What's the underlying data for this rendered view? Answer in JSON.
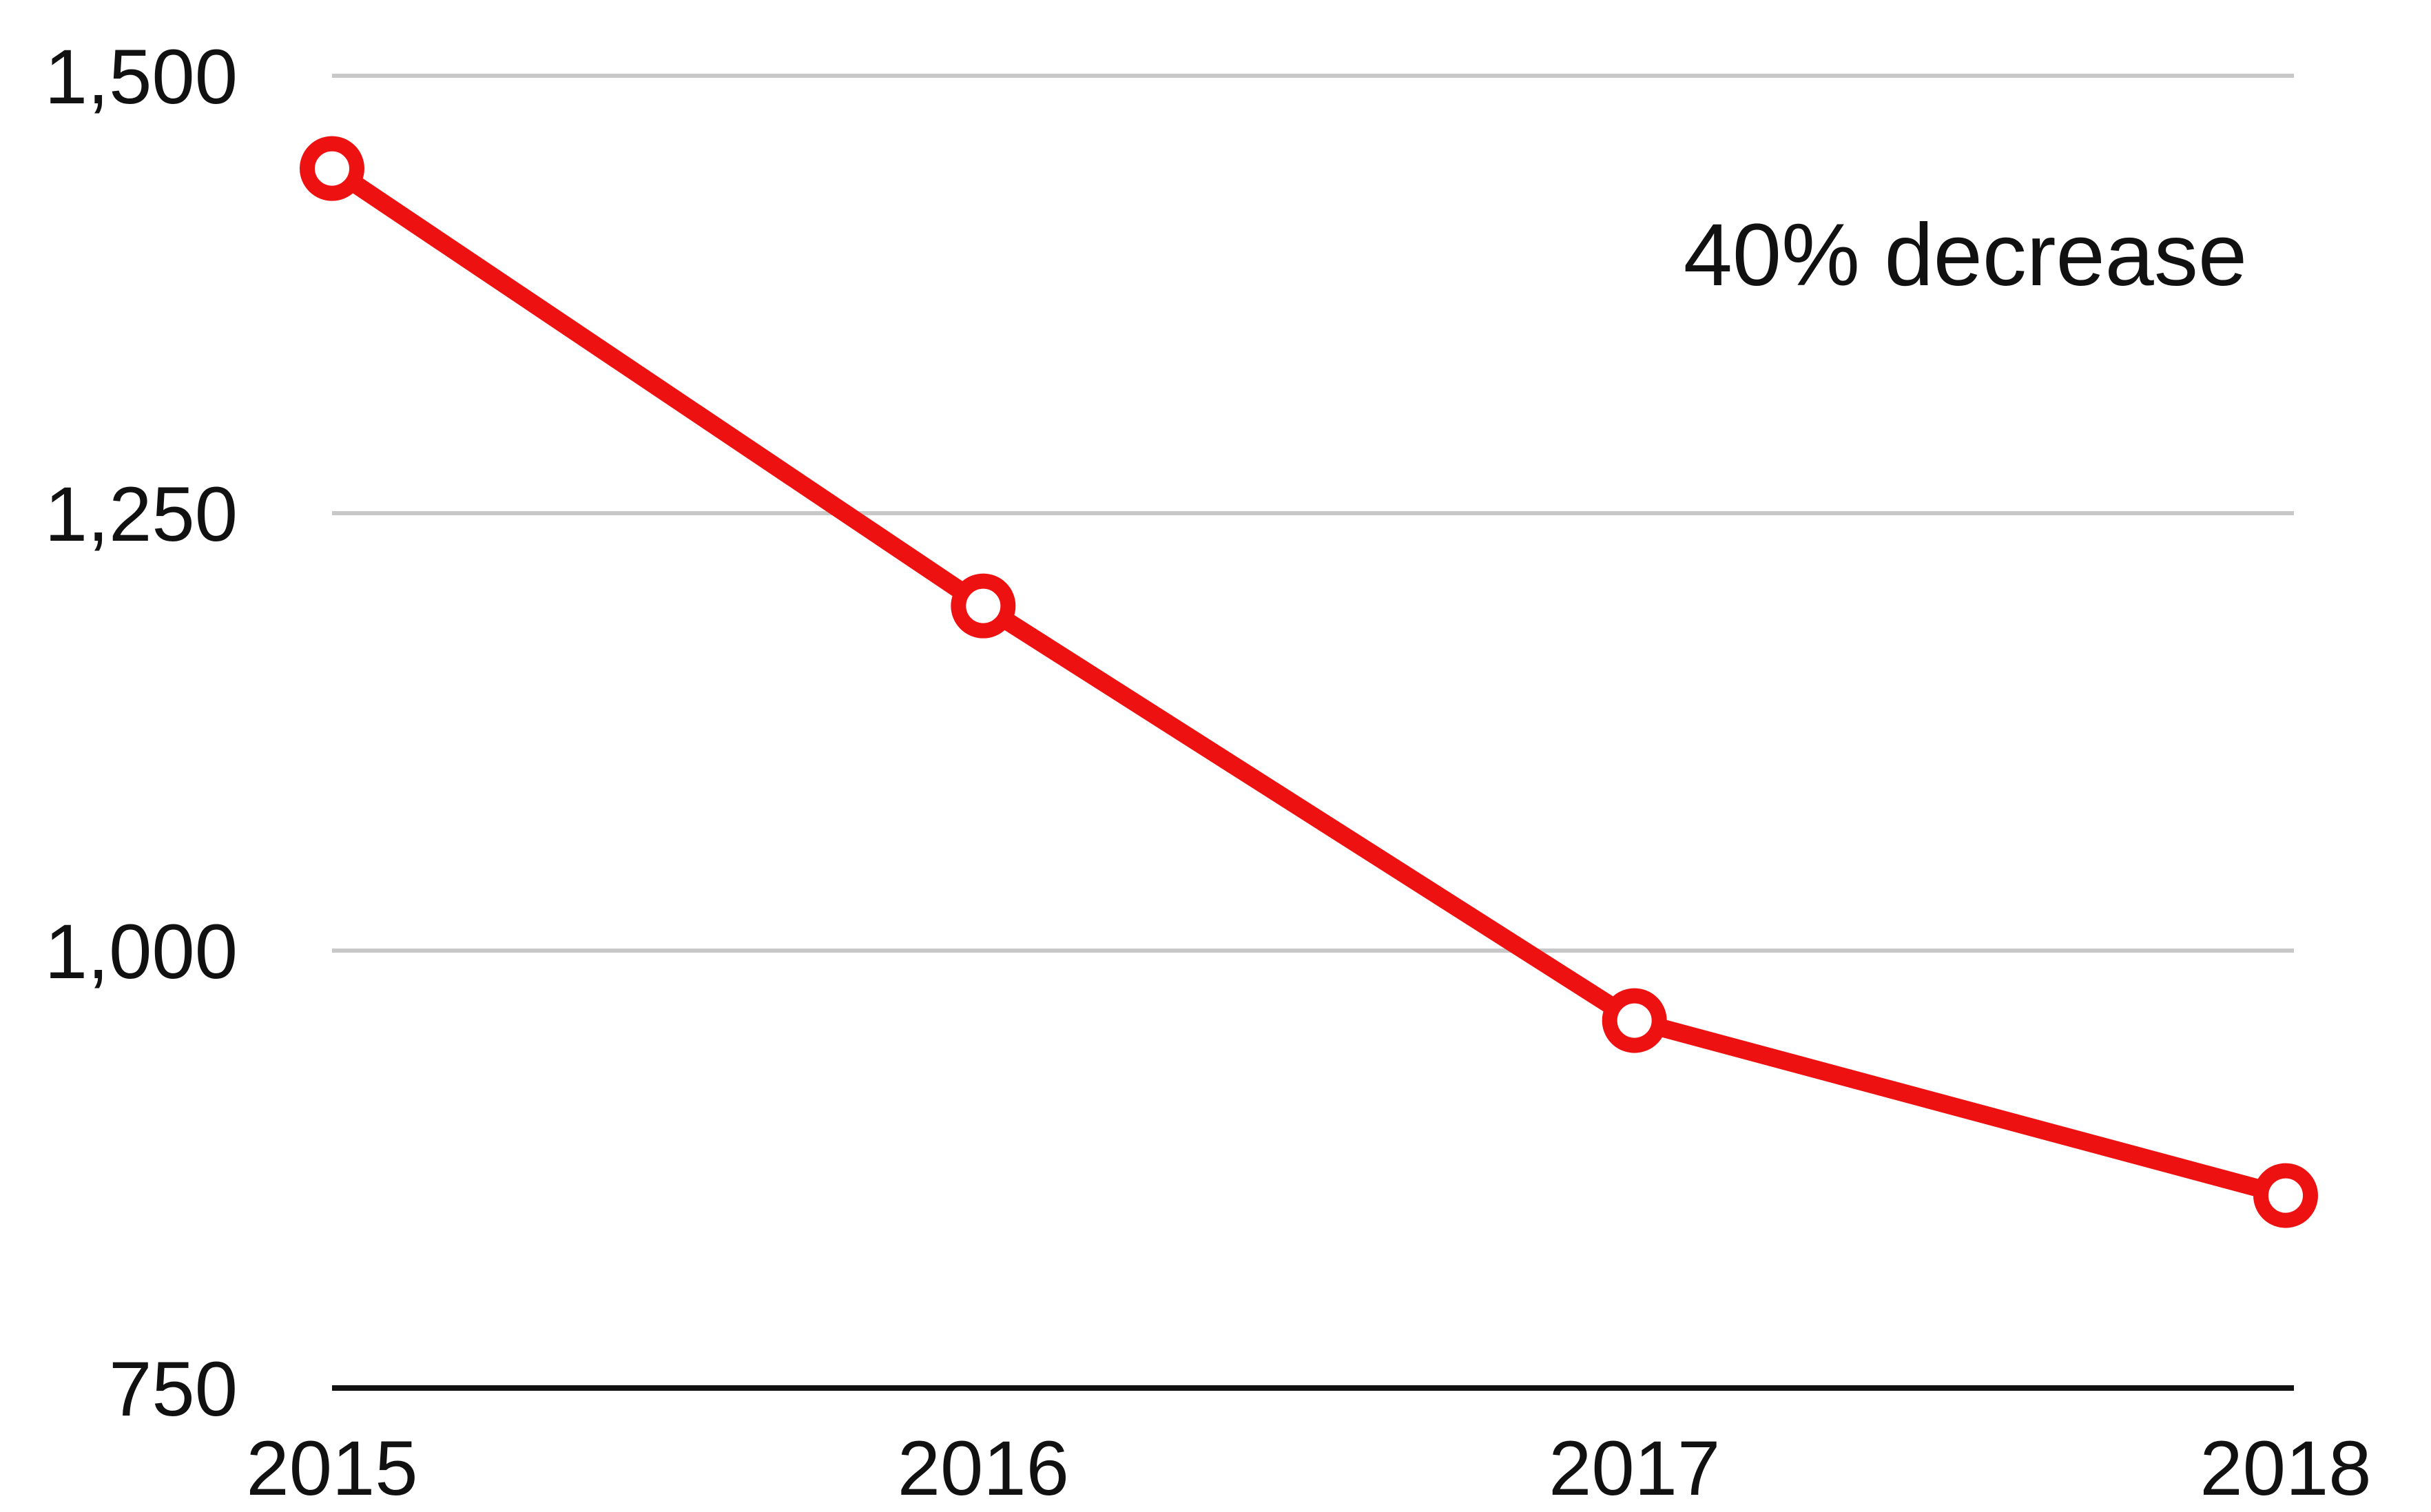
{
  "chart_data": {
    "type": "line",
    "x": [
      "2015",
      "2016",
      "2017",
      "2018"
    ],
    "series": [
      {
        "values": [
          1447,
          1197,
          960,
          860
        ]
      }
    ],
    "ylim": [
      750,
      1500
    ],
    "yticks": [
      750,
      1000,
      1250,
      1500
    ],
    "ytick_labels": [
      "750",
      "1,000",
      "1,250",
      "1,500"
    ],
    "annotation": "40% decrease",
    "annotation_position": "top-right",
    "grid": true,
    "legend": "none",
    "colors": {
      "line": "#ee1111",
      "marker_fill": "#ffffff",
      "grid": "#c8c8c8",
      "baseline": "#111111",
      "text": "#111111"
    }
  }
}
